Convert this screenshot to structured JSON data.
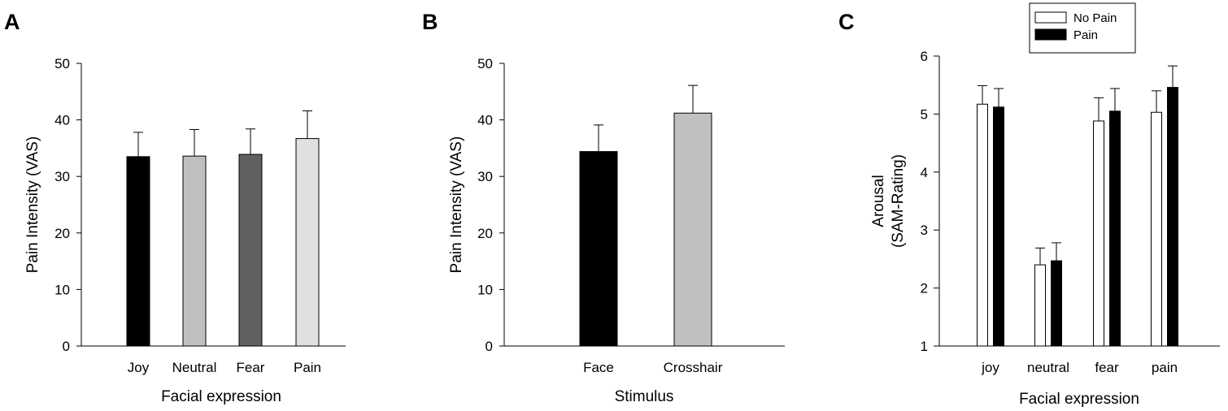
{
  "chart_data": [
    {
      "panel": "A",
      "type": "bar",
      "xlabel": "Facial expression",
      "ylabel": "Pain Intensity (VAS)",
      "ylim": [
        0,
        50
      ],
      "yticks": [
        "0",
        "10",
        "20",
        "30",
        "40",
        "50"
      ],
      "categories": [
        "Joy",
        "Neutral",
        "Fear",
        "Pain"
      ],
      "values": [
        33.5,
        33.6,
        33.9,
        36.7
      ],
      "errors": [
        4.3,
        4.7,
        4.5,
        4.9
      ],
      "colors": [
        "#000000",
        "#c0c0c0",
        "#606060",
        "#e0e0e0"
      ],
      "grid": false
    },
    {
      "panel": "B",
      "type": "bar",
      "xlabel": "Stimulus",
      "ylabel": "Pain Intensity (VAS)",
      "ylim": [
        0,
        50
      ],
      "yticks": [
        "0",
        "10",
        "20",
        "30",
        "40",
        "50"
      ],
      "categories": [
        "Face",
        "Crosshair"
      ],
      "values": [
        34.4,
        41.2
      ],
      "errors": [
        4.7,
        4.9
      ],
      "colors": [
        "#000000",
        "#c0c0c0"
      ],
      "grid": false
    },
    {
      "panel": "C",
      "type": "bar",
      "xlabel": "Facial expression",
      "ylabel_lines": [
        "Arousal",
        "(SAM-Rating)"
      ],
      "ylim": [
        1,
        6
      ],
      "yticks": [
        "1",
        "2",
        "3",
        "4",
        "5",
        "6"
      ],
      "categories": [
        "joy",
        "neutral",
        "fear",
        "pain"
      ],
      "series": [
        {
          "name": "No Pain",
          "color": "#ffffff",
          "values": [
            5.17,
            2.4,
            4.88,
            5.03
          ],
          "errors": [
            0.32,
            0.29,
            0.4,
            0.37
          ]
        },
        {
          "name": "Pain",
          "color": "#000000",
          "values": [
            5.12,
            2.47,
            5.05,
            5.46
          ],
          "errors": [
            0.32,
            0.31,
            0.39,
            0.37
          ]
        }
      ],
      "legend_position": "top",
      "grid": false
    }
  ]
}
